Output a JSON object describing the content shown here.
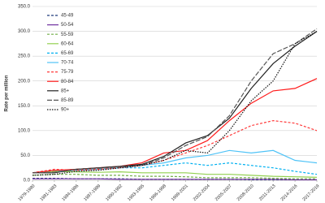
{
  "chart_data": {
    "type": "line",
    "y_label": "Rate per million",
    "categories": [
      "1979-1980",
      "1981-1983",
      "1984-1986",
      "1987-1989",
      "1990-1992",
      "1993-1995",
      "1996-1998",
      "1999-2001",
      "2002-2004",
      "2005-2007",
      "2008-2010",
      "2011-2013",
      "2014-2016",
      "2017-2019"
    ],
    "ylim": [
      0,
      350
    ],
    "yticks": [
      {
        "value": 0,
        "label": "0.0"
      },
      {
        "value": 50,
        "label": "50.0"
      },
      {
        "value": 100,
        "label": "100.0"
      },
      {
        "value": 150,
        "label": "150.0"
      },
      {
        "value": 200,
        "label": "200.0"
      },
      {
        "value": 250,
        "label": "250.0"
      },
      {
        "value": 300,
        "label": "300.0"
      },
      {
        "value": 350,
        "label": "350.0"
      }
    ],
    "grid": true,
    "legend": "top-left",
    "series": [
      {
        "name": "45-49",
        "color": "#1f3a7a",
        "dash": "dashed",
        "values": [
          4,
          4,
          3,
          3,
          3,
          2,
          2,
          2,
          2,
          2,
          1,
          1,
          1,
          1
        ]
      },
      {
        "name": "50-54",
        "color": "#7030a0",
        "dash": "solid",
        "values": [
          3,
          3,
          3,
          3,
          2,
          2,
          2,
          2,
          2,
          2,
          2,
          2,
          1,
          1
        ]
      },
      {
        "name": "55-59",
        "color": "#70ad47",
        "dash": "dashed",
        "values": [
          10,
          12,
          12,
          10,
          10,
          8,
          8,
          7,
          5,
          5,
          5,
          4,
          3,
          3
        ]
      },
      {
        "name": "60-64",
        "color": "#92d050",
        "dash": "solid",
        "values": [
          15,
          18,
          17,
          16,
          17,
          15,
          15,
          15,
          12,
          12,
          10,
          8,
          7,
          6
        ]
      },
      {
        "name": "65-69",
        "color": "#00b0f0",
        "dash": "dashed",
        "values": [
          15,
          20,
          20,
          22,
          25,
          25,
          30,
          35,
          30,
          35,
          30,
          25,
          18,
          12
        ]
      },
      {
        "name": "70-74",
        "color": "#4fc3f7",
        "dash": "solid",
        "values": [
          15,
          20,
          20,
          22,
          25,
          30,
          35,
          45,
          50,
          60,
          55,
          60,
          40,
          35
        ]
      },
      {
        "name": "75-79",
        "color": "#ff3b3b",
        "dash": "dashed",
        "values": [
          15,
          22,
          20,
          22,
          25,
          30,
          40,
          55,
          70,
          90,
          110,
          120,
          115,
          100
        ]
      },
      {
        "name": "80-84",
        "color": "#ff1a1a",
        "dash": "solid",
        "values": [
          15,
          20,
          22,
          25,
          28,
          35,
          55,
          60,
          80,
          120,
          155,
          180,
          185,
          205
        ]
      },
      {
        "name": "85+",
        "color": "#222222",
        "dash": "solid",
        "values": [
          15,
          15,
          22,
          25,
          28,
          32,
          48,
          75,
          90,
          125,
          185,
          235,
          270,
          300
        ]
      },
      {
        "name": "85-89",
        "color": "#555555",
        "dash": "longdash",
        "values": [
          15,
          16,
          22,
          24,
          27,
          30,
          45,
          70,
          88,
          130,
          200,
          255,
          275,
          305
        ]
      },
      {
        "name": "90+",
        "color": "#111111",
        "dash": "dotted",
        "values": [
          10,
          12,
          18,
          20,
          25,
          30,
          40,
          60,
          55,
          100,
          160,
          200,
          275,
          300
        ]
      }
    ]
  }
}
